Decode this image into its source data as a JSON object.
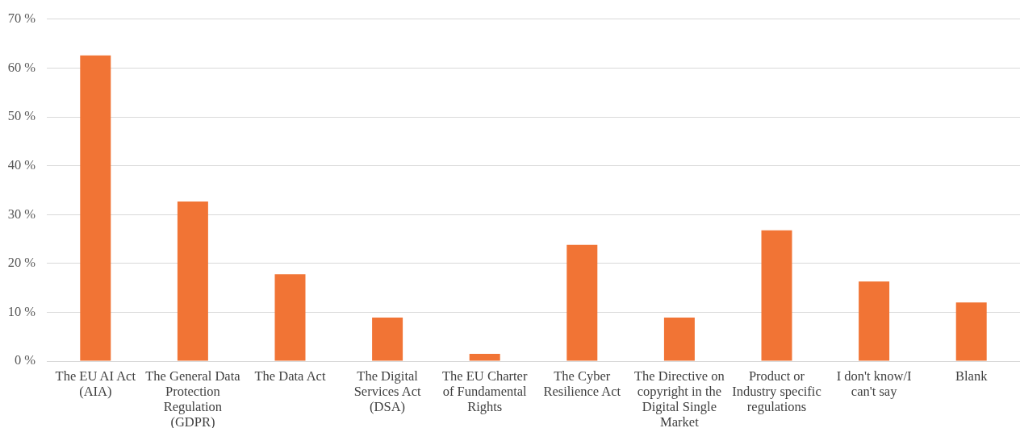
{
  "chart_data": {
    "type": "bar",
    "categories": [
      "The EU AI Act (AIA)",
      "The General Data Protection Regulation (GDPR)",
      "The Data Act",
      "The Digital Services Act (DSA)",
      "The EU Charter of Fundamental Rights",
      "The Cyber Resilience Act",
      "The Directive on copyright in the Digital Single Market",
      "Product or Industry specific regulations",
      "I don't know/I can't say",
      "Blank"
    ],
    "values": [
      62.6,
      32.7,
      17.8,
      8.9,
      1.5,
      23.8,
      8.9,
      26.8,
      16.3,
      12.0
    ],
    "color": "#f17435",
    "ylim": [
      0,
      70
    ],
    "yticks": [
      {
        "value": 0,
        "label": "0 %"
      },
      {
        "value": 10,
        "label": "10 %"
      },
      {
        "value": 20,
        "label": "20 %"
      },
      {
        "value": 30,
        "label": "30 %"
      },
      {
        "value": 40,
        "label": "40 %"
      },
      {
        "value": 50,
        "label": "50 %"
      },
      {
        "value": 60,
        "label": "60 %"
      },
      {
        "value": 70,
        "label": "70 %"
      }
    ],
    "grid": "y"
  }
}
